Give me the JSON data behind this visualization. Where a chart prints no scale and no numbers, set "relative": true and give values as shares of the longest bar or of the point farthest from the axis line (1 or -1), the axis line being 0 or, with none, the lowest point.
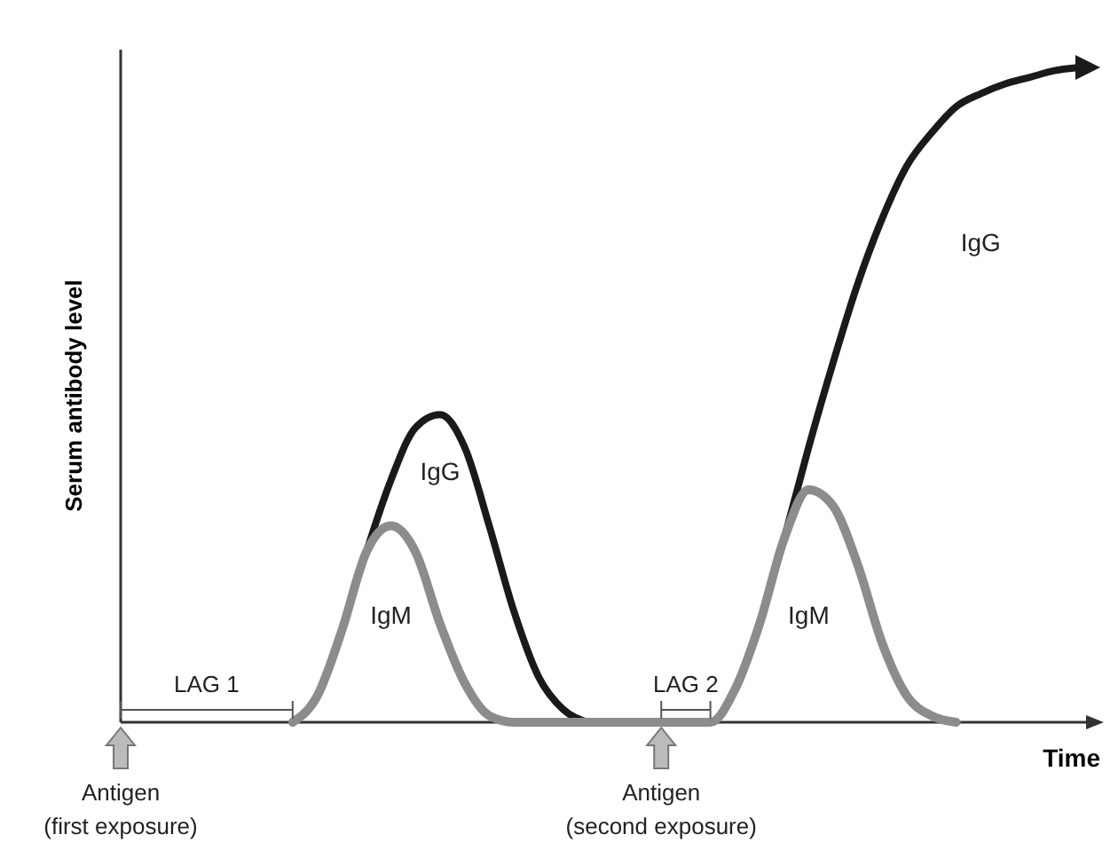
{
  "chart_data": {
    "type": "line",
    "relative": true,
    "xlabel": "Time",
    "ylabel": "Serum antibody level",
    "categories": [
      null,
      null,
      null,
      null,
      null,
      null,
      null,
      null,
      null,
      null,
      null,
      null,
      null,
      null,
      null,
      null,
      null,
      null,
      null,
      null,
      null,
      null,
      null,
      null,
      null,
      null,
      null,
      null,
      null,
      null,
      null,
      null,
      null,
      null,
      null,
      null,
      null,
      null,
      null,
      null
    ],
    "series": [
      {
        "name": "IgG",
        "color": "#1a1a1a",
        "values": [
          null,
          null,
          null,
          null,
          null,
          null,
          null,
          null,
          null,
          null,
          0.26,
          0.37,
          0.45,
          0.47,
          0.42,
          0.3,
          0.17,
          0.07,
          0.02,
          0,
          null,
          null,
          null,
          null,
          null,
          null,
          null,
          0.28,
          0.42,
          0.55,
          0.67,
          0.77,
          0.85,
          0.9,
          0.94,
          0.96,
          0.975,
          0.985,
          0.995,
          1
        ]
      },
      {
        "name": "IgM",
        "color": "#8c8c8c",
        "values": [
          null,
          null,
          null,
          null,
          null,
          null,
          null,
          0,
          0.04,
          0.14,
          0.26,
          0.3,
          0.26,
          0.15,
          0.06,
          0.01,
          0,
          0,
          0,
          0,
          0,
          0,
          0,
          0,
          0,
          0.05,
          0.15,
          0.28,
          0.355,
          0.33,
          0.24,
          0.12,
          0.04,
          0.01,
          0,
          null,
          null,
          null,
          null,
          null
        ]
      }
    ],
    "annotations": [
      "LAG 1",
      "LAG 2",
      "Antigen (first exposure)",
      "Antigen (second exposure)"
    ]
  }
}
